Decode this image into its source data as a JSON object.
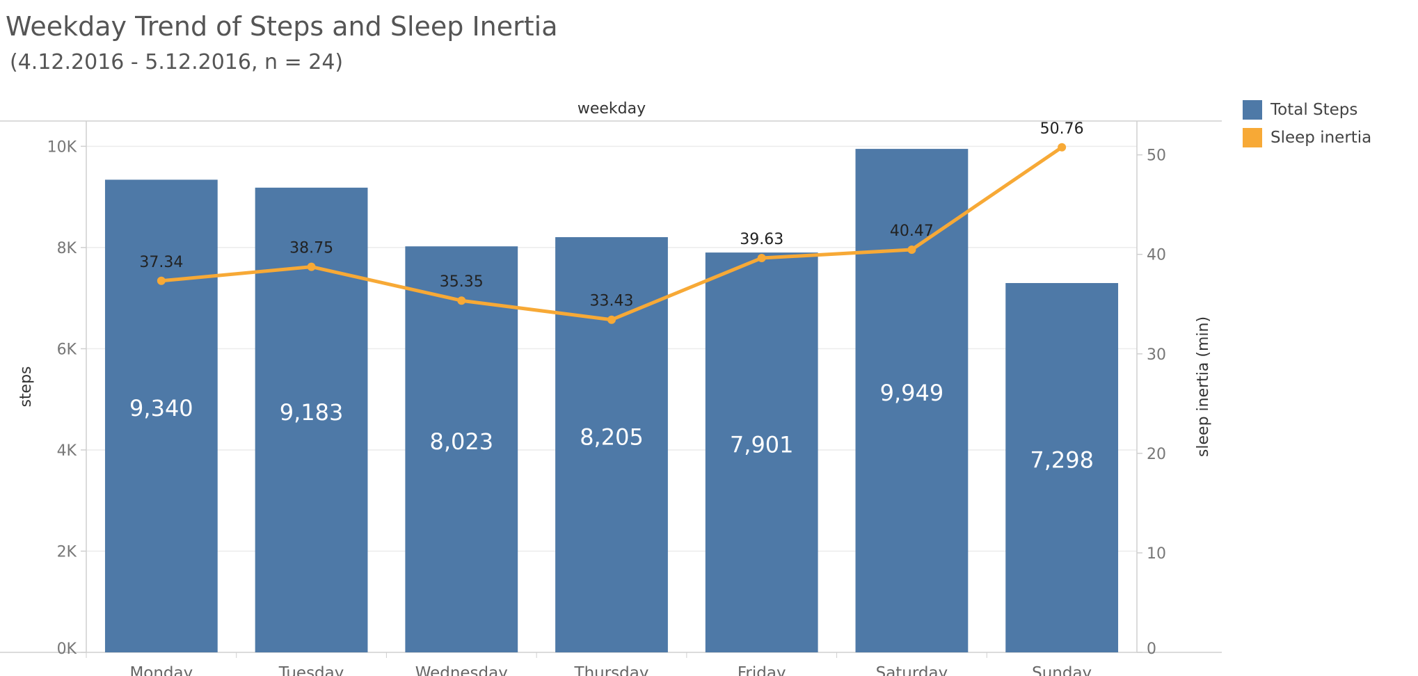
{
  "title": "Weekday Trend of Steps and Sleep Inertia",
  "subtitle": "(4.12.2016 - 5.12.2016, n = 24)",
  "colors": {
    "bar": "#4e79a7",
    "line": "#f7a936",
    "grid": "#ececec",
    "axis": "#cfcfcf"
  },
  "chart_data": {
    "type": "bar",
    "categories": [
      "Monday",
      "Tuesday",
      "Wednesday",
      "Thursday",
      "Friday",
      "Saturday",
      "Sunday"
    ],
    "x_header": "weekday",
    "ylabel": "steps",
    "y2label": "sleep inertia (min)",
    "ylim": [
      0,
      10500
    ],
    "y_ticks": [
      0,
      2000,
      4000,
      6000,
      8000,
      10000
    ],
    "y_tick_labels": [
      "0K",
      "2K",
      "4K",
      "6K",
      "8K",
      "10K"
    ],
    "y2lim": [
      0,
      53.4
    ],
    "y2_ticks": [
      0,
      10,
      20,
      30,
      40,
      50
    ],
    "y2_tick_labels": [
      "0",
      "10",
      "20",
      "30",
      "40",
      "50"
    ],
    "grid": true,
    "legend_position": "right",
    "series": [
      {
        "name": "Total Steps",
        "type": "bar",
        "axis": "left",
        "values": [
          9340,
          9183,
          8023,
          8205,
          7901,
          9949,
          7298
        ],
        "labels": [
          "9,340",
          "9,183",
          "8,023",
          "8,205",
          "7,901",
          "9,949",
          "7,298"
        ]
      },
      {
        "name": "Sleep inertia",
        "type": "line",
        "axis": "right",
        "values": [
          37.34,
          38.75,
          35.35,
          33.43,
          39.63,
          40.47,
          50.76
        ],
        "labels": [
          "37.34",
          "38.75",
          "35.35",
          "33.43",
          "39.63",
          "40.47",
          "50.76"
        ]
      }
    ]
  }
}
